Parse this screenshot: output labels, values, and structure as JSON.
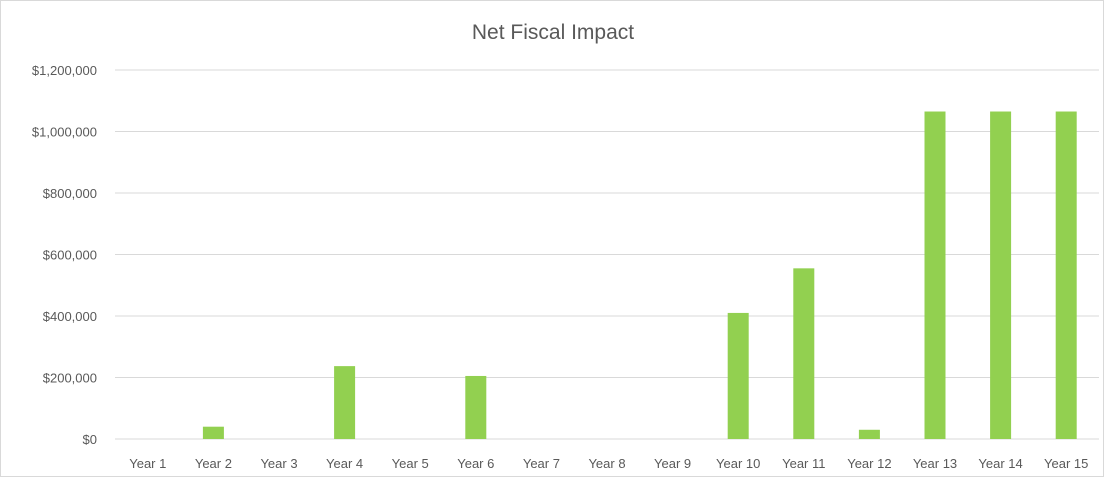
{
  "chart_data": {
    "type": "bar",
    "title": "Net Fiscal Impact",
    "xlabel": "",
    "ylabel": "",
    "categories": [
      "Year 1",
      "Year 2",
      "Year 3",
      "Year 4",
      "Year 5",
      "Year 6",
      "Year 7",
      "Year 8",
      "Year 9",
      "Year 10",
      "Year 11",
      "Year 12",
      "Year 13",
      "Year 14",
      "Year 15"
    ],
    "values": [
      0,
      40000,
      0,
      237000,
      0,
      205000,
      0,
      0,
      0,
      410000,
      555000,
      30000,
      1065000,
      1065000,
      1065000
    ],
    "ylim": [
      0,
      1200000
    ],
    "yticks": [
      0,
      200000,
      400000,
      600000,
      800000,
      1000000,
      1200000
    ],
    "ytick_labels": [
      "$0",
      "$200,000",
      "$400,000",
      "$600,000",
      "$800,000",
      "$1,000,000",
      "$1,200,000"
    ],
    "grid": true,
    "legend": "none",
    "bar_color": "#92d050"
  }
}
